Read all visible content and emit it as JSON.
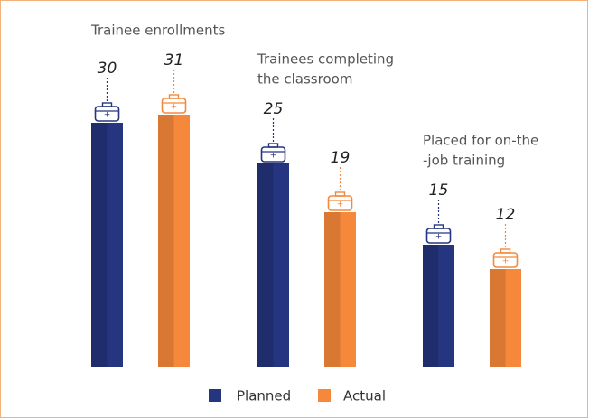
{
  "chart_data": {
    "type": "bar",
    "categories": [
      [
        "Trainee enrollments"
      ],
      [
        "Trainees completing",
        "the classroom"
      ],
      [
        "Placed for on-the",
        "-job training"
      ]
    ],
    "series": [
      {
        "name": "Planned",
        "color": "#263580",
        "values": [
          30,
          25,
          15
        ]
      },
      {
        "name": "Actual",
        "color": "#f5883a",
        "values": [
          31,
          19,
          12
        ]
      }
    ]
  }
}
